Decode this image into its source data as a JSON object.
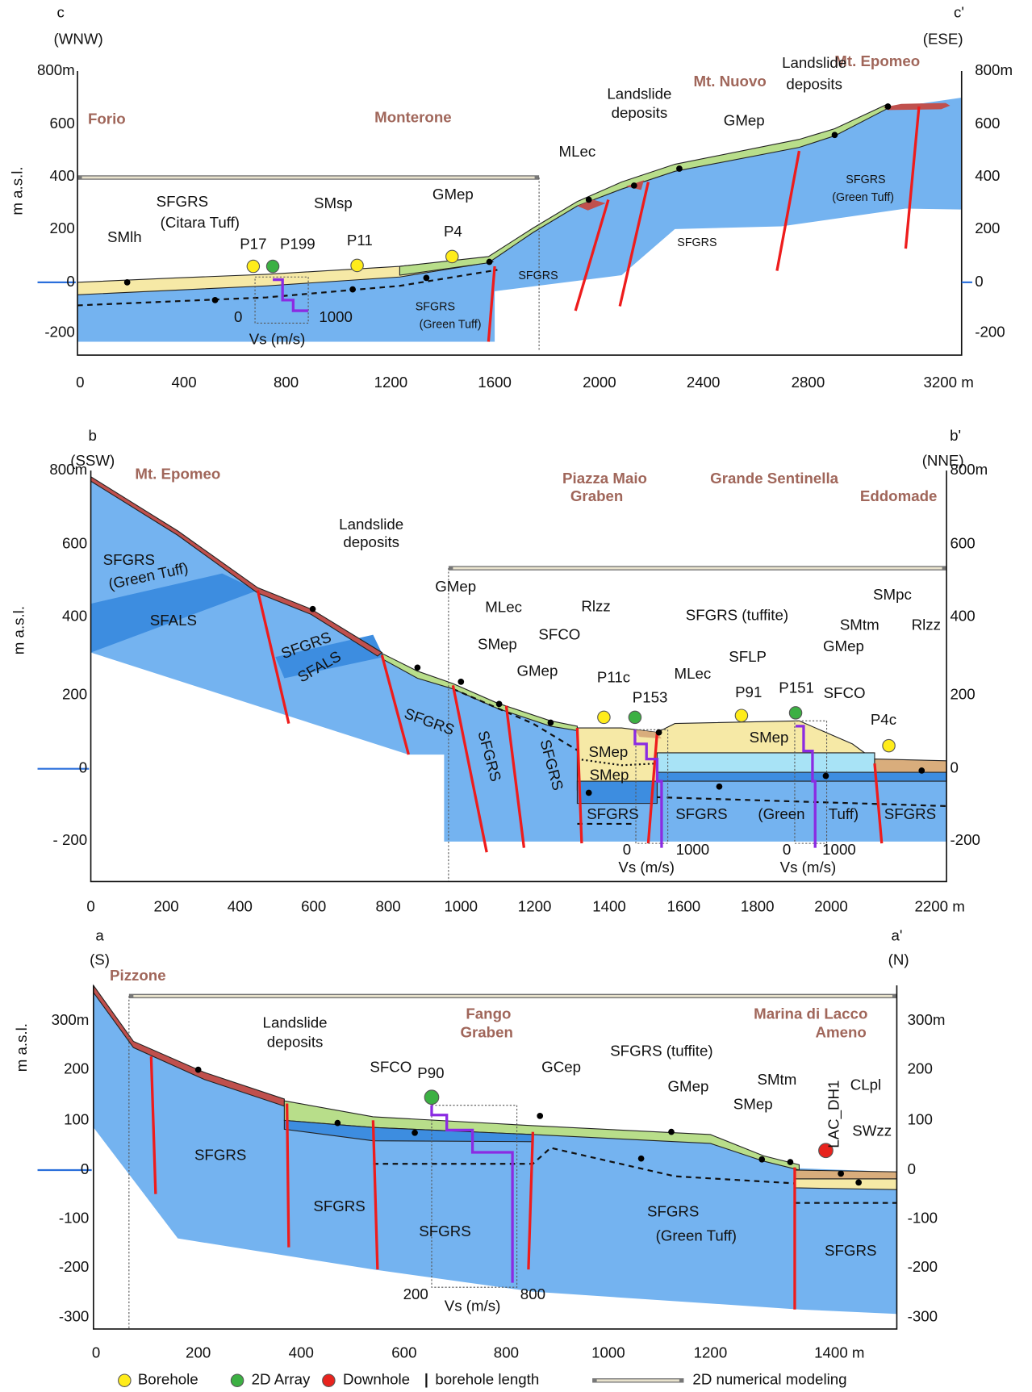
{
  "panels": [
    {
      "header": [
        "c",
        "(WNW)",
        "c'",
        "(ESE)"
      ],
      "y_title": "m a.s.l.",
      "y_left": [
        "800m",
        "600",
        "400",
        "200",
        "0",
        "-200"
      ],
      "y_right": [
        "800m",
        "600",
        "400",
        "200",
        "0",
        "-200"
      ],
      "x_ticks": [
        "0",
        "400",
        "800",
        "1200",
        "1600",
        "2000",
        "2400",
        "2800",
        "3200 m"
      ],
      "texts": [
        "Forio",
        "Monterone",
        "Mt. Nuovo",
        "Mt. Epomeo",
        "Landslide",
        "deposits",
        "Landslide",
        "deposits",
        "MLec",
        "GMep",
        "SMlh",
        "SFGRS",
        "(Citara Tuff)",
        "SMsp",
        "GMep",
        "P17",
        "P199",
        "P11",
        "P4",
        "SFGRS",
        "SFGRS",
        "(Green Tuff)",
        "SFGRS",
        "SFGRS",
        "(Green Tuff)",
        "0",
        "1000",
        "Vs (m/s)"
      ]
    },
    {
      "header": [
        "b",
        "(SSW)",
        "b'",
        "(NNE)"
      ],
      "y_title": "m a.s.l.",
      "y_left": [
        "800m",
        "600",
        "400",
        "200",
        "0",
        "- 200"
      ],
      "y_right": [
        "800m",
        "600",
        "400",
        "200",
        "0",
        "-200"
      ],
      "x_ticks": [
        "0",
        "200",
        "400",
        "600",
        "800",
        "1000",
        "1200",
        "1400",
        "1600",
        "1800",
        "2000",
        "2200 m"
      ],
      "texts": [
        "Mt. Epomeo",
        "Piazza Maio",
        "Graben",
        "Grande Sentinella",
        "Eddomade",
        "Landslide",
        "deposits",
        "SFGRS",
        "(Green Tuff)",
        "SFALS",
        "SFGRS",
        "SFALS",
        "GMep",
        "MLec",
        "SMep",
        "GMep",
        "SFCO",
        "Rlzz",
        "P11c",
        "P153",
        "MLec",
        "SFGRS (tuffite)",
        "SFLP",
        "P91",
        "P151",
        "SFCO",
        "GMep",
        "SMtm",
        "SMpc",
        "Rlzz",
        "P4c",
        "SMep",
        "SMep",
        "SMep",
        "SFGRS",
        "SFGRS",
        "SFGRS",
        "SFGRS",
        "SFGRS",
        "(Green",
        "Tuff)",
        "SFGRS",
        "0",
        "1000",
        "Vs (m/s)",
        "0",
        "1000",
        "Vs (m/s)"
      ]
    },
    {
      "header": [
        "a",
        "(S)",
        "a'",
        "(N)"
      ],
      "y_title": "m a.s.l.",
      "y_left": [
        "300m",
        "200",
        "100",
        "0",
        "-100",
        "-200",
        "-300"
      ],
      "y_right": [
        "300m",
        "200",
        "100",
        "0",
        "-100",
        "-200",
        "-300"
      ],
      "x_ticks": [
        "0",
        "200",
        "400",
        "600",
        "800",
        "1000",
        "1200",
        "1400 m"
      ],
      "texts": [
        "Pizzone",
        "Fango",
        "Graben",
        "Marina di Lacco",
        "Ameno",
        "Landslide",
        "deposits",
        "SFCO",
        "P90",
        "GCep",
        "SFGRS (tuffite)",
        "GMep",
        "SMtm",
        "SMep",
        "LAC_DH1",
        "CLpl",
        "SWzz",
        "SFGRS",
        "SFGRS",
        "SFGRS",
        "SFGRS",
        "(Green Tuff)",
        "SFGRS",
        "200",
        "800",
        "Vs (m/s)"
      ]
    }
  ],
  "legend": [
    "Borehole",
    "2D Array",
    "Downhole",
    "borehole length",
    "2D numerical modeling"
  ]
}
